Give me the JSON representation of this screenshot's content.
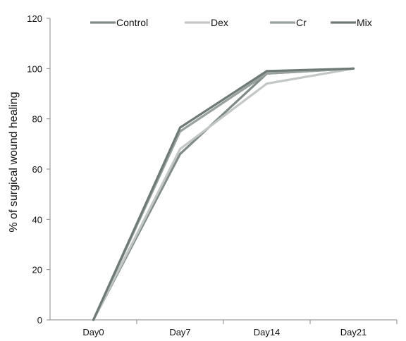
{
  "chart_data": {
    "type": "line",
    "categories": [
      "Day0",
      "Day7",
      "Day14",
      "Day21"
    ],
    "ylabel": "% of surgical wound healing",
    "xlabel": "",
    "ylim": [
      0,
      120
    ],
    "yticks": [
      0,
      20,
      40,
      60,
      80,
      100,
      120
    ],
    "grid": false,
    "legend_position": "top",
    "series": [
      {
        "name": "Control",
        "values": [
          0,
          66,
          98,
          100
        ],
        "color": "#7f8a86"
      },
      {
        "name": "Dex",
        "values": [
          0,
          68,
          94,
          100
        ],
        "color": "#c2c7c5"
      },
      {
        "name": "Cr",
        "values": [
          0,
          75,
          98,
          100
        ],
        "color": "#98a19e"
      },
      {
        "name": "Mix",
        "values": [
          0,
          76.5,
          99,
          100
        ],
        "color": "#6f7a76"
      }
    ]
  }
}
